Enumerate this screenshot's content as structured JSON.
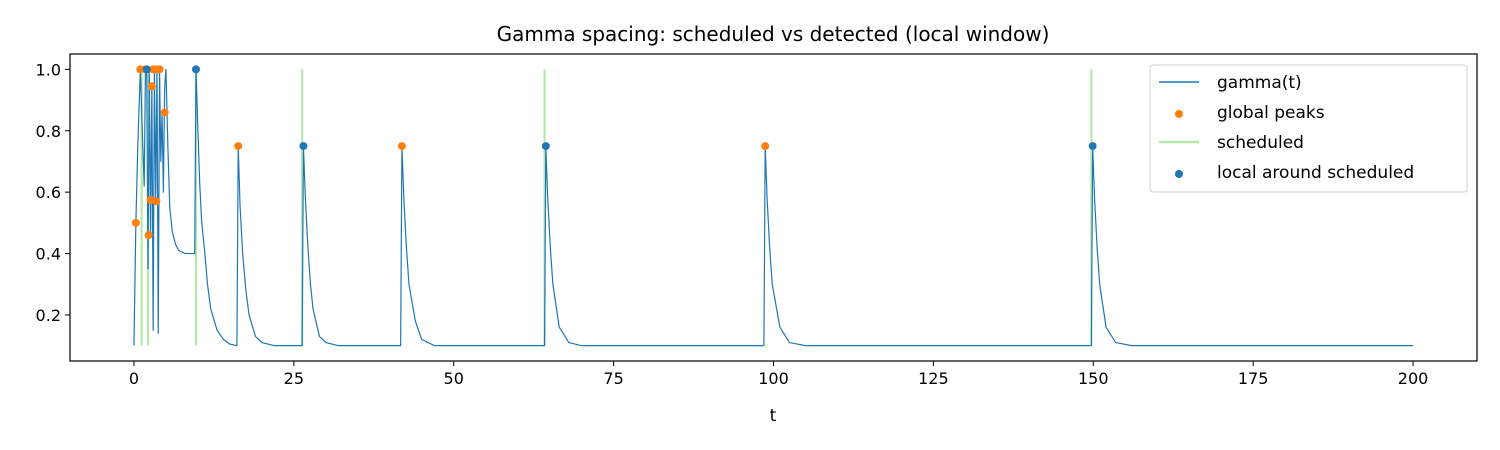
{
  "chart_data": {
    "type": "line",
    "title": "Gamma spacing: scheduled vs detected (local window)",
    "xlabel": "t",
    "ylabel": "",
    "xlim": [
      -10,
      210
    ],
    "ylim": [
      0.05,
      1.05
    ],
    "xticks": [
      0,
      25,
      50,
      75,
      100,
      125,
      150,
      175,
      200
    ],
    "yticks": [
      0.2,
      0.4,
      0.6,
      0.8,
      1.0
    ],
    "grid": false,
    "legend_position": "top-right",
    "colors": {
      "gamma": "#1f77b4",
      "global_peaks": "#ff7f0e",
      "scheduled": "#98df8a",
      "local": "#1f77b4"
    },
    "series": [
      {
        "name": "gamma(t)",
        "kind": "line",
        "x": [
          0,
          0.3,
          0.6,
          1.0,
          1.3,
          1.6,
          1.8,
          2.0,
          2.2,
          2.4,
          2.6,
          2.8,
          3.0,
          3.2,
          3.4,
          3.6,
          3.8,
          4.0,
          4.2,
          4.4,
          4.6,
          4.8,
          5.0,
          5.3,
          5.6,
          6.0,
          6.5,
          7.0,
          7.5,
          8.0,
          8.5,
          9.0,
          9.5,
          9.7,
          10.0,
          10.3,
          10.6,
          11.0,
          11.5,
          12,
          13,
          14,
          15,
          16.1,
          16.3,
          16.6,
          17.0,
          17.5,
          18,
          19,
          20,
          22,
          24,
          26.3,
          26.5,
          26.8,
          27.2,
          27.6,
          28,
          29,
          30,
          32,
          35,
          41.7,
          41.9,
          42.2,
          42.6,
          43.0,
          44,
          45,
          47,
          50,
          64.2,
          64.4,
          64.7,
          65.1,
          65.5,
          66.5,
          68,
          70,
          75,
          98.5,
          98.7,
          99.0,
          99.4,
          99.8,
          101,
          102.5,
          105,
          110,
          149.7,
          149.9,
          150.2,
          150.6,
          151.0,
          152,
          153.5,
          156,
          160,
          180,
          200
        ],
        "y": [
          0.1,
          0.5,
          0.75,
          1.0,
          0.8,
          0.62,
          1.0,
          0.98,
          0.35,
          1.0,
          0.46,
          0.95,
          0.15,
          1.0,
          0.58,
          1.0,
          0.14,
          1.0,
          0.7,
          0.86,
          0.6,
          0.94,
          1.0,
          0.75,
          0.55,
          0.47,
          0.43,
          0.41,
          0.405,
          0.4,
          0.4,
          0.4,
          0.4,
          1.0,
          0.8,
          0.62,
          0.5,
          0.42,
          0.3,
          0.22,
          0.15,
          0.12,
          0.105,
          0.1,
          0.75,
          0.55,
          0.4,
          0.28,
          0.2,
          0.13,
          0.11,
          0.1,
          0.1,
          0.1,
          0.75,
          0.58,
          0.42,
          0.3,
          0.22,
          0.13,
          0.11,
          0.1,
          0.1,
          0.1,
          0.75,
          0.58,
          0.42,
          0.3,
          0.18,
          0.12,
          0.1,
          0.1,
          0.1,
          0.75,
          0.58,
          0.42,
          0.3,
          0.16,
          0.11,
          0.1,
          0.1,
          0.1,
          0.75,
          0.58,
          0.42,
          0.3,
          0.16,
          0.11,
          0.1,
          0.1,
          0.1,
          0.75,
          0.58,
          0.42,
          0.3,
          0.16,
          0.11,
          0.1,
          0.1,
          0.1,
          0.1
        ]
      },
      {
        "name": "global peaks",
        "kind": "scatter",
        "x": [
          0.3,
          1.0,
          1.8,
          2.3,
          2.6,
          2.8,
          3.0,
          3.5,
          3.6,
          4.0,
          4.8,
          16.3,
          41.9,
          98.7
        ],
        "y": [
          0.5,
          1.0,
          1.0,
          0.46,
          0.575,
          0.945,
          1.0,
          0.57,
          1.0,
          1.0,
          0.86,
          0.75,
          0.75,
          0.75
        ]
      },
      {
        "name": "scheduled",
        "kind": "vlines",
        "x": [
          1.2,
          2.2,
          9.7,
          26.3,
          64.2,
          149.7
        ],
        "ymin": 0.1,
        "ymax": 1.0
      },
      {
        "name": "local around scheduled",
        "kind": "scatter",
        "x": [
          2.0,
          9.7,
          26.5,
          64.4,
          149.9
        ],
        "y": [
          1.0,
          1.0,
          0.75,
          0.75,
          0.75
        ]
      }
    ]
  }
}
